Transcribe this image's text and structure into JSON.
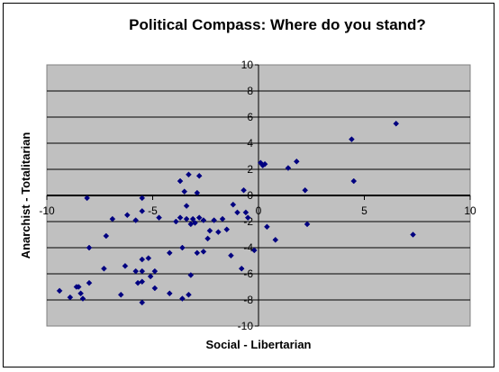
{
  "chart_data": {
    "type": "scatter",
    "title": "Political Compass: Where do you stand?",
    "xlabel": "Social - Libertarian",
    "ylabel": "Anarchist - Totalitarian",
    "xlim": [
      -10,
      10
    ],
    "ylim": [
      -10,
      10
    ],
    "x_ticks": [
      -10,
      -5,
      0,
      5,
      10
    ],
    "y_ticks": [
      -10,
      -8,
      -6,
      -4,
      -2,
      0,
      2,
      4,
      6,
      8,
      10
    ],
    "grid": true,
    "legend": "none",
    "colors": {
      "plot_background": "#c0c0c0",
      "marker": "#000080",
      "grid": "#000000"
    },
    "points": [
      [
        6.5,
        5.5
      ],
      [
        4.4,
        4.3
      ],
      [
        4.5,
        1.1
      ],
      [
        7.3,
        -3.0
      ],
      [
        2.3,
        -2.2
      ],
      [
        2.2,
        0.4
      ],
      [
        1.8,
        2.6
      ],
      [
        1.4,
        2.1
      ],
      [
        0.8,
        -3.4
      ],
      [
        0.4,
        -2.4
      ],
      [
        0.1,
        2.5
      ],
      [
        0.2,
        2.3
      ],
      [
        0.3,
        2.4
      ],
      [
        -0.7,
        0.4
      ],
      [
        -0.6,
        -1.3
      ],
      [
        -0.5,
        -1.7
      ],
      [
        -0.8,
        -5.6
      ],
      [
        -0.2,
        -4.2
      ],
      [
        -1.2,
        -0.7
      ],
      [
        -1.0,
        -1.3
      ],
      [
        -1.5,
        -2.6
      ],
      [
        -1.3,
        -4.6
      ],
      [
        -1.7,
        -1.8
      ],
      [
        -1.9,
        -2.8
      ],
      [
        -2.1,
        -1.9
      ],
      [
        -2.3,
        -2.7
      ],
      [
        -2.4,
        -3.3
      ],
      [
        -2.6,
        -4.3
      ],
      [
        -2.6,
        -1.9
      ],
      [
        -2.8,
        -1.7
      ],
      [
        -2.8,
        1.5
      ],
      [
        -2.9,
        0.2
      ],
      [
        -2.9,
        -4.4
      ],
      [
        -3.0,
        -2.1
      ],
      [
        -3.1,
        -1.8
      ],
      [
        -3.2,
        -2.2
      ],
      [
        -3.2,
        -6.1
      ],
      [
        -3.3,
        -7.6
      ],
      [
        -3.3,
        1.6
      ],
      [
        -3.4,
        -0.8
      ],
      [
        -3.4,
        -1.8
      ],
      [
        -3.5,
        0.3
      ],
      [
        -3.6,
        -4.0
      ],
      [
        -3.6,
        -7.9
      ],
      [
        -3.7,
        1.1
      ],
      [
        -3.7,
        -1.7
      ],
      [
        -3.9,
        -2.0
      ],
      [
        -4.2,
        -4.4
      ],
      [
        -4.2,
        -7.5
      ],
      [
        -4.7,
        -1.7
      ],
      [
        -4.9,
        -5.8
      ],
      [
        -4.9,
        -7.1
      ],
      [
        -5.1,
        -6.2
      ],
      [
        -5.2,
        -4.8
      ],
      [
        -5.5,
        -1.2
      ],
      [
        -5.5,
        -0.2
      ],
      [
        -5.5,
        -4.9
      ],
      [
        -5.5,
        -5.8
      ],
      [
        -5.5,
        -6.6
      ],
      [
        -5.5,
        -8.2
      ],
      [
        -5.7,
        -6.7
      ],
      [
        -5.8,
        -1.9
      ],
      [
        -5.8,
        -5.8
      ],
      [
        -6.2,
        -1.5
      ],
      [
        -6.3,
        -5.4
      ],
      [
        -6.5,
        -7.6
      ],
      [
        -6.9,
        -1.8
      ],
      [
        -7.2,
        -3.1
      ],
      [
        -7.3,
        -5.6
      ],
      [
        -8.0,
        -4.0
      ],
      [
        -8.0,
        -6.7
      ],
      [
        -8.1,
        -0.2
      ],
      [
        -8.3,
        -7.9
      ],
      [
        -8.4,
        -7.5
      ],
      [
        -8.5,
        -7.0
      ],
      [
        -8.6,
        -7.0
      ],
      [
        -8.9,
        -7.8
      ],
      [
        -9.4,
        -7.3
      ]
    ]
  }
}
